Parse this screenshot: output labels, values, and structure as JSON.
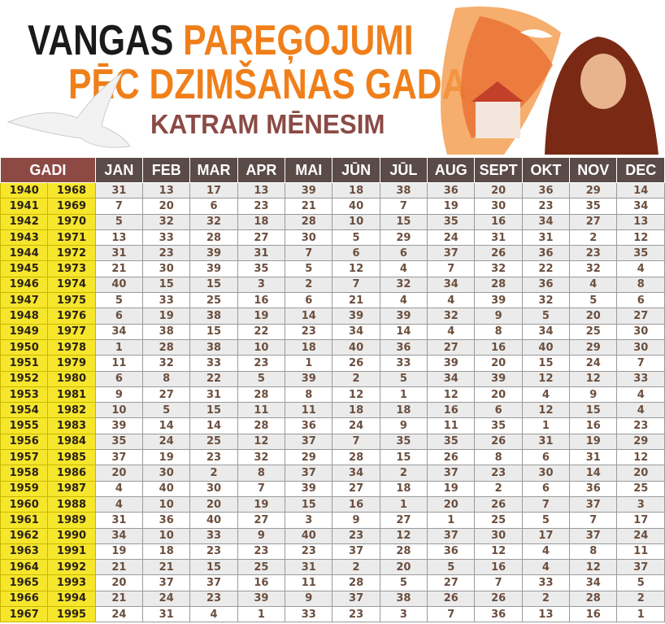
{
  "header": {
    "title_black": "VANGAS",
    "title_orange": "PAREĢOJUMI",
    "line2": "PĒC DZIMŠANAS GADA",
    "subtitle": "KATRAM MĒNESIM"
  },
  "table": {
    "columns": [
      "GADI",
      "JAN",
      "FEB",
      "MAR",
      "APR",
      "MAI",
      "JŪN",
      "JŪL",
      "AUG",
      "SEPT",
      "OKT",
      "NOV",
      "DEC"
    ],
    "rows": [
      [
        1940,
        1968,
        31,
        13,
        17,
        13,
        39,
        18,
        38,
        36,
        20,
        36,
        29,
        14
      ],
      [
        1941,
        1969,
        7,
        20,
        6,
        23,
        21,
        40,
        7,
        19,
        30,
        23,
        35,
        34
      ],
      [
        1942,
        1970,
        5,
        32,
        32,
        18,
        28,
        10,
        15,
        35,
        16,
        34,
        27,
        13
      ],
      [
        1943,
        1971,
        13,
        33,
        28,
        27,
        30,
        5,
        29,
        24,
        31,
        31,
        2,
        12
      ],
      [
        1944,
        1972,
        31,
        23,
        39,
        31,
        7,
        6,
        6,
        37,
        26,
        36,
        23,
        35
      ],
      [
        1945,
        1973,
        21,
        30,
        39,
        35,
        5,
        12,
        4,
        7,
        32,
        22,
        32,
        4
      ],
      [
        1946,
        1974,
        40,
        15,
        15,
        3,
        2,
        7,
        32,
        34,
        28,
        36,
        4,
        8
      ],
      [
        1947,
        1975,
        5,
        33,
        25,
        16,
        6,
        21,
        4,
        4,
        39,
        32,
        5,
        6
      ],
      [
        1948,
        1976,
        6,
        19,
        38,
        19,
        14,
        39,
        39,
        32,
        9,
        5,
        20,
        27
      ],
      [
        1949,
        1977,
        34,
        38,
        15,
        22,
        23,
        34,
        14,
        4,
        8,
        34,
        25,
        30
      ],
      [
        1950,
        1978,
        1,
        28,
        38,
        10,
        18,
        40,
        36,
        27,
        16,
        40,
        29,
        30
      ],
      [
        1951,
        1979,
        11,
        32,
        33,
        23,
        1,
        26,
        33,
        39,
        20,
        15,
        24,
        7
      ],
      [
        1952,
        1980,
        6,
        8,
        22,
        5,
        39,
        2,
        5,
        34,
        39,
        12,
        12,
        33
      ],
      [
        1953,
        1981,
        9,
        27,
        31,
        28,
        8,
        12,
        1,
        12,
        20,
        4,
        9,
        4
      ],
      [
        1954,
        1982,
        10,
        5,
        15,
        11,
        11,
        18,
        18,
        16,
        6,
        12,
        15,
        4
      ],
      [
        1955,
        1983,
        39,
        14,
        14,
        28,
        36,
        24,
        9,
        11,
        35,
        1,
        16,
        23
      ],
      [
        1956,
        1984,
        35,
        24,
        25,
        12,
        37,
        7,
        35,
        35,
        26,
        31,
        19,
        29
      ],
      [
        1957,
        1985,
        37,
        19,
        23,
        32,
        29,
        28,
        15,
        26,
        8,
        6,
        31,
        12
      ],
      [
        1958,
        1986,
        20,
        30,
        2,
        8,
        37,
        34,
        2,
        37,
        23,
        30,
        14,
        20
      ],
      [
        1959,
        1987,
        4,
        40,
        30,
        7,
        39,
        27,
        18,
        19,
        2,
        6,
        36,
        25
      ],
      [
        1960,
        1988,
        4,
        10,
        20,
        19,
        15,
        16,
        1,
        20,
        26,
        7,
        37,
        3
      ],
      [
        1961,
        1989,
        31,
        36,
        40,
        27,
        3,
        9,
        27,
        1,
        25,
        5,
        7,
        17
      ],
      [
        1962,
        1990,
        34,
        10,
        33,
        9,
        40,
        23,
        12,
        37,
        30,
        17,
        37,
        24
      ],
      [
        1963,
        1991,
        19,
        18,
        23,
        23,
        23,
        37,
        28,
        36,
        12,
        4,
        8,
        11
      ],
      [
        1964,
        1992,
        21,
        21,
        15,
        25,
        31,
        2,
        20,
        5,
        16,
        4,
        12,
        37
      ],
      [
        1965,
        1993,
        20,
        37,
        37,
        16,
        11,
        28,
        5,
        27,
        7,
        33,
        34,
        5
      ],
      [
        1966,
        1994,
        21,
        24,
        23,
        39,
        9,
        37,
        38,
        26,
        26,
        2,
        28,
        2
      ],
      [
        1967,
        1995,
        24,
        31,
        4,
        1,
        33,
        23,
        3,
        7,
        36,
        13,
        16,
        1
      ]
    ]
  }
}
